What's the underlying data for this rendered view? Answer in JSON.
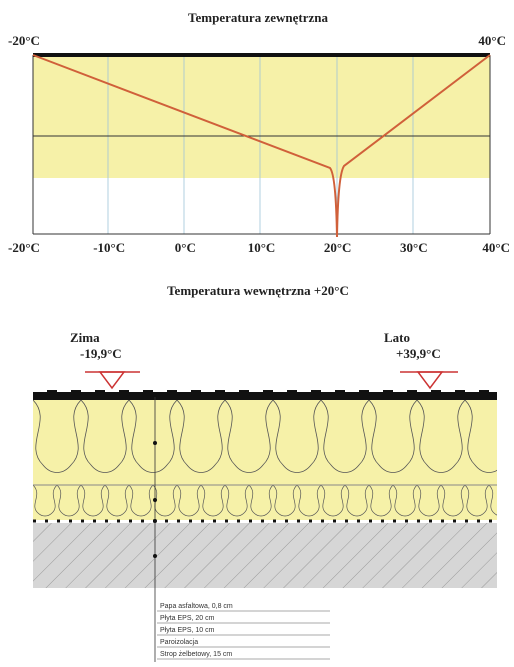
{
  "header": {
    "title": "Temperatura zewnętrzna"
  },
  "chart": {
    "top_left": "-20°C",
    "top_right": "40°C",
    "x_labels": [
      "-20°C",
      "-10°C",
      "0°C",
      "10°C",
      "20°C",
      "30°C",
      "40°C"
    ]
  },
  "subtitle": "Temperatura wewnętrzna +20°C",
  "winter": {
    "label": "Zima",
    "value": "-19,9°C"
  },
  "summer": {
    "label": "Lato",
    "value": "+39,9°C"
  },
  "layers": [
    "Papa asfaltowa, 0,8 cm",
    "Płyta EPS, 20 cm",
    "Płyta EPS, 10 cm",
    "Paroizolacja",
    "Strop żelbetowy, 15 cm"
  ]
}
